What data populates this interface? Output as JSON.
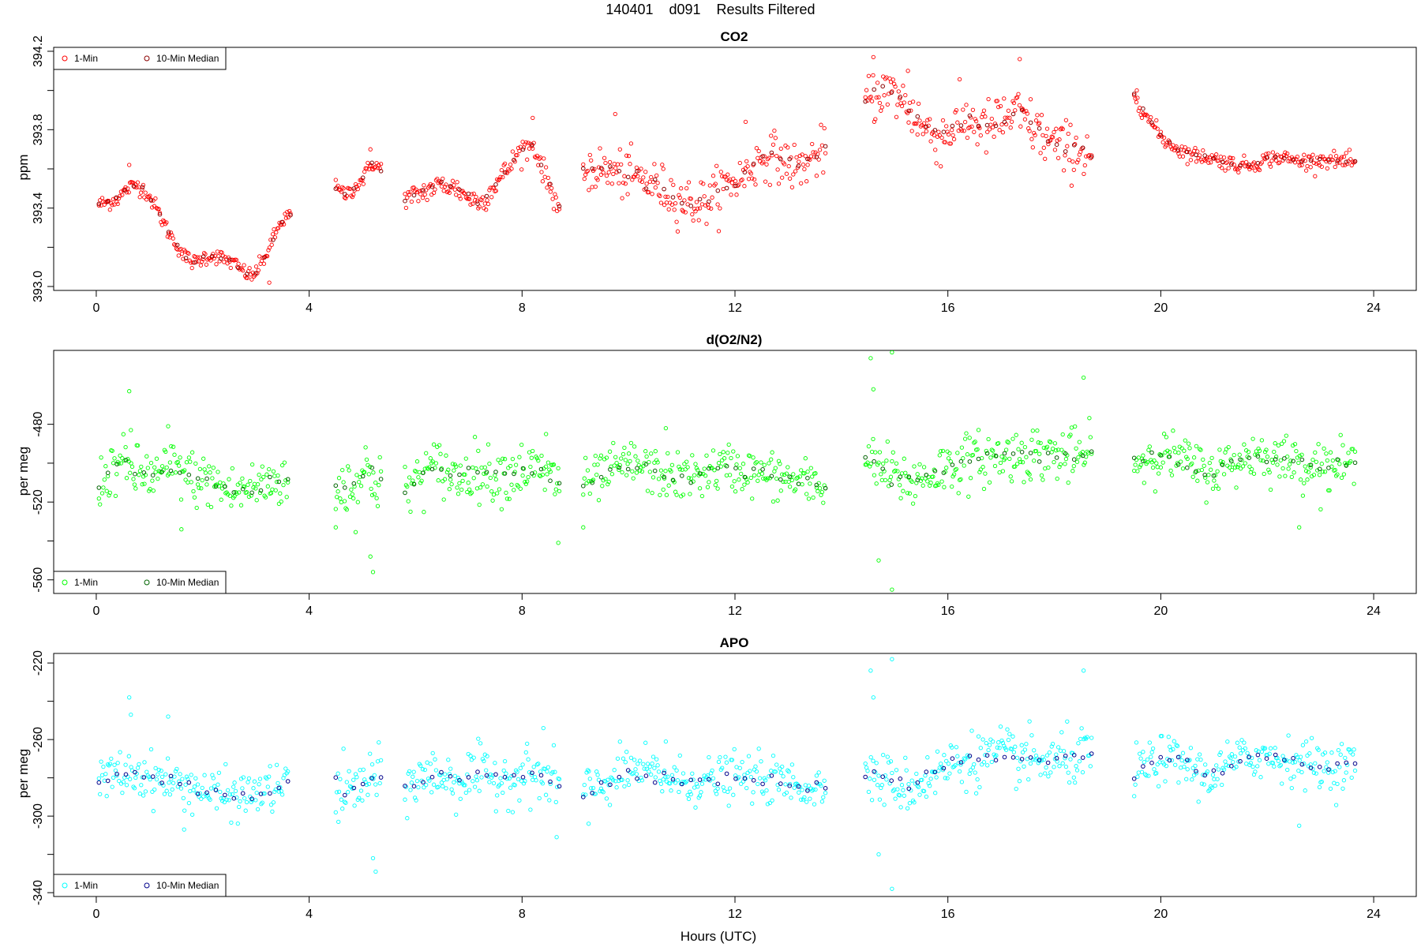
{
  "figure": {
    "title": "140401    d091    Results Filtered",
    "xlabel": "Hours (UTC)"
  },
  "chart_data": [
    {
      "type": "scatter",
      "title": "CO2",
      "xlabel": "",
      "ylabel": "ppm",
      "xlim": [
        -0.8,
        24.8
      ],
      "ylim": [
        392.98,
        394.22
      ],
      "xticks": [
        "0",
        "4",
        "8",
        "12",
        "16",
        "20",
        "24"
      ],
      "yticks": [
        "393.0",
        "393.4",
        "393.8",
        "394.2"
      ],
      "legend_position": "top-left",
      "legend": [
        "1-Min",
        "10-Min Median"
      ],
      "colors": {
        "one_min": "#ff0000",
        "median": "#8b0000"
      },
      "segments": [
        {
          "x0": 0.05,
          "x1": 3.65,
          "y": [
            393.42,
            393.43,
            393.45,
            393.5,
            393.52,
            393.48,
            393.4,
            393.3,
            393.22,
            393.15,
            393.12,
            393.15,
            393.16,
            393.14,
            393.12,
            393.08,
            393.05,
            393.12,
            393.22,
            393.33,
            393.37
          ],
          "noise": 0.02,
          "spikes": [
            [
              0.62,
              393.62
            ],
            [
              3.25,
              393.02
            ]
          ]
        },
        {
          "x0": 4.5,
          "x1": 5.35,
          "y": [
            393.5,
            393.47,
            393.5,
            393.55,
            393.63,
            393.6
          ],
          "noise": 0.02,
          "spikes": [
            [
              5.15,
              393.7
            ]
          ]
        },
        {
          "x0": 5.8,
          "x1": 8.7,
          "y": [
            393.44,
            393.47,
            393.5,
            393.52,
            393.5,
            393.45,
            393.43,
            393.52,
            393.6,
            393.7,
            393.72,
            393.55,
            393.4
          ],
          "noise": 0.03,
          "spikes": [
            [
              8.2,
              393.86
            ]
          ]
        },
        {
          "x0": 9.15,
          "x1": 13.7,
          "y": [
            393.6,
            393.6,
            393.58,
            393.57,
            393.55,
            393.52,
            393.48,
            393.44,
            393.42,
            393.45,
            393.52,
            393.55,
            393.62,
            393.68,
            393.64,
            393.6,
            393.65,
            393.7
          ],
          "noise": 0.06,
          "spikes": [
            [
              9.75,
              393.88
            ],
            [
              12.2,
              393.84
            ]
          ]
        },
        {
          "x0": 14.45,
          "x1": 18.7,
          "y": [
            393.95,
            394.0,
            393.98,
            393.9,
            393.8,
            393.76,
            393.82,
            393.85,
            393.8,
            393.85,
            393.88,
            393.82,
            393.75,
            393.7,
            393.7,
            393.68
          ],
          "noise": 0.07,
          "spikes": [
            [
              14.6,
              394.17
            ],
            [
              15.25,
              394.1
            ],
            [
              17.35,
              394.16
            ]
          ]
        },
        {
          "x0": 19.5,
          "x1": 23.65,
          "y": [
            393.98,
            393.85,
            393.75,
            393.7,
            393.67,
            393.66,
            393.64,
            393.62,
            393.62,
            393.65,
            393.66,
            393.64,
            393.64,
            393.65,
            393.64,
            393.63
          ],
          "noise": 0.02,
          "spikes": [
            [
              19.55,
              394.0
            ]
          ]
        }
      ]
    },
    {
      "type": "scatter",
      "title": "d(O2/N2)",
      "xlabel": "",
      "ylabel": "per meg",
      "xlim": [
        -0.8,
        24.8
      ],
      "ylim": [
        -567,
        -442
      ],
      "xticks": [
        "0",
        "4",
        "8",
        "12",
        "16",
        "20",
        "24"
      ],
      "yticks": [
        "-560",
        "-520",
        "-480"
      ],
      "legend_position": "bottom-left",
      "legend": [
        "1-Min",
        "10-Min Median"
      ],
      "colors": {
        "one_min": "#00ff00",
        "median": "#006400"
      },
      "segments": [
        {
          "x0": 0.05,
          "x1": 3.6,
          "y": [
            -510,
            -500,
            -505,
            -507,
            -502,
            -508,
            -510,
            -515,
            -513,
            -510,
            -508
          ],
          "noise": 7,
          "spikes": [
            [
              0.62,
              -463
            ],
            [
              0.65,
              -483
            ],
            [
              1.35,
              -481
            ],
            [
              1.6,
              -534
            ]
          ]
        },
        {
          "x0": 4.5,
          "x1": 5.35,
          "y": [
            -512,
            -512,
            -505,
            -508
          ],
          "noise": 9,
          "spikes": [
            [
              5.2,
              -556
            ],
            [
              5.15,
              -548
            ],
            [
              4.5,
              -533
            ]
          ]
        },
        {
          "x0": 5.8,
          "x1": 8.7,
          "y": [
            -515,
            -505,
            -502,
            -508,
            -503,
            -506,
            -505,
            -503,
            -505,
            -510
          ],
          "noise": 7,
          "spikes": [
            [
              8.45,
              -485
            ],
            [
              8.68,
              -541
            ]
          ]
        },
        {
          "x0": 9.15,
          "x1": 13.7,
          "y": [
            -512,
            -505,
            -500,
            -505,
            -508,
            -505,
            -502,
            -505,
            -507,
            -510,
            -512
          ],
          "noise": 6,
          "spikes": [
            [
              9.15,
              -533
            ],
            [
              10.7,
              -482
            ]
          ]
        },
        {
          "x0": 14.45,
          "x1": 18.7,
          "y": [
            -498,
            -505,
            -510,
            -505,
            -500,
            -498,
            -497,
            -495,
            -495,
            -497,
            -495
          ],
          "noise": 7,
          "spikes": [
            [
              14.55,
              -446
            ],
            [
              14.95,
              -443
            ],
            [
              14.7,
              -550
            ],
            [
              14.95,
              -565
            ],
            [
              14.6,
              -462
            ],
            [
              18.55,
              -456
            ]
          ]
        },
        {
          "x0": 19.5,
          "x1": 23.65,
          "y": [
            -500,
            -495,
            -498,
            -505,
            -500,
            -495,
            -498,
            -500,
            -502,
            -500
          ],
          "noise": 6,
          "spikes": [
            [
              22.6,
              -533
            ]
          ]
        }
      ]
    },
    {
      "type": "scatter",
      "title": "APO",
      "xlabel": "",
      "ylabel": "per meg",
      "xlim": [
        -0.8,
        24.8
      ],
      "ylim": [
        -342,
        -215
      ],
      "xticks": [
        "0",
        "4",
        "8",
        "12",
        "16",
        "20",
        "24"
      ],
      "yticks": [
        "-340",
        "-300",
        "-260",
        "-220"
      ],
      "legend_position": "bottom-left",
      "legend": [
        "1-Min",
        "10-Min Median"
      ],
      "colors": {
        "one_min": "#00ffff",
        "median": "#00008b"
      },
      "segments": [
        {
          "x0": 0.05,
          "x1": 3.6,
          "y": [
            -282,
            -278,
            -278,
            -280,
            -283,
            -285,
            -288,
            -290,
            -289,
            -286,
            -284
          ],
          "noise": 6,
          "spikes": [
            [
              0.62,
              -238
            ],
            [
              0.65,
              -247
            ],
            [
              1.35,
              -248
            ],
            [
              1.65,
              -307
            ]
          ]
        },
        {
          "x0": 4.5,
          "x1": 5.35,
          "y": [
            -285,
            -288,
            -282,
            -280
          ],
          "noise": 8,
          "spikes": [
            [
              5.25,
              -329
            ],
            [
              5.2,
              -322
            ],
            [
              4.55,
              -303
            ]
          ]
        },
        {
          "x0": 5.8,
          "x1": 8.7,
          "y": [
            -285,
            -280,
            -278,
            -282,
            -278,
            -280,
            -280,
            -278,
            -280,
            -285
          ],
          "noise": 7,
          "spikes": [
            [
              8.4,
              -254
            ],
            [
              8.65,
              -311
            ]
          ]
        },
        {
          "x0": 9.15,
          "x1": 13.7,
          "y": [
            -288,
            -282,
            -276,
            -278,
            -282,
            -282,
            -280,
            -280,
            -282,
            -284,
            -286
          ],
          "noise": 6,
          "spikes": [
            [
              9.25,
              -304
            ],
            [
              10.7,
              -261
            ]
          ]
        },
        {
          "x0": 14.45,
          "x1": 18.7,
          "y": [
            -278,
            -282,
            -285,
            -278,
            -272,
            -270,
            -268,
            -270,
            -272,
            -270,
            -268
          ],
          "noise": 7,
          "spikes": [
            [
              14.55,
              -224
            ],
            [
              14.95,
              -218
            ],
            [
              14.7,
              -320
            ],
            [
              14.95,
              -338
            ],
            [
              14.6,
              -238
            ],
            [
              18.55,
              -224
            ]
          ]
        },
        {
          "x0": 19.5,
          "x1": 23.65,
          "y": [
            -278,
            -270,
            -272,
            -280,
            -272,
            -268,
            -270,
            -272,
            -275,
            -272
          ],
          "noise": 6,
          "spikes": [
            [
              22.6,
              -305
            ]
          ]
        }
      ]
    }
  ]
}
